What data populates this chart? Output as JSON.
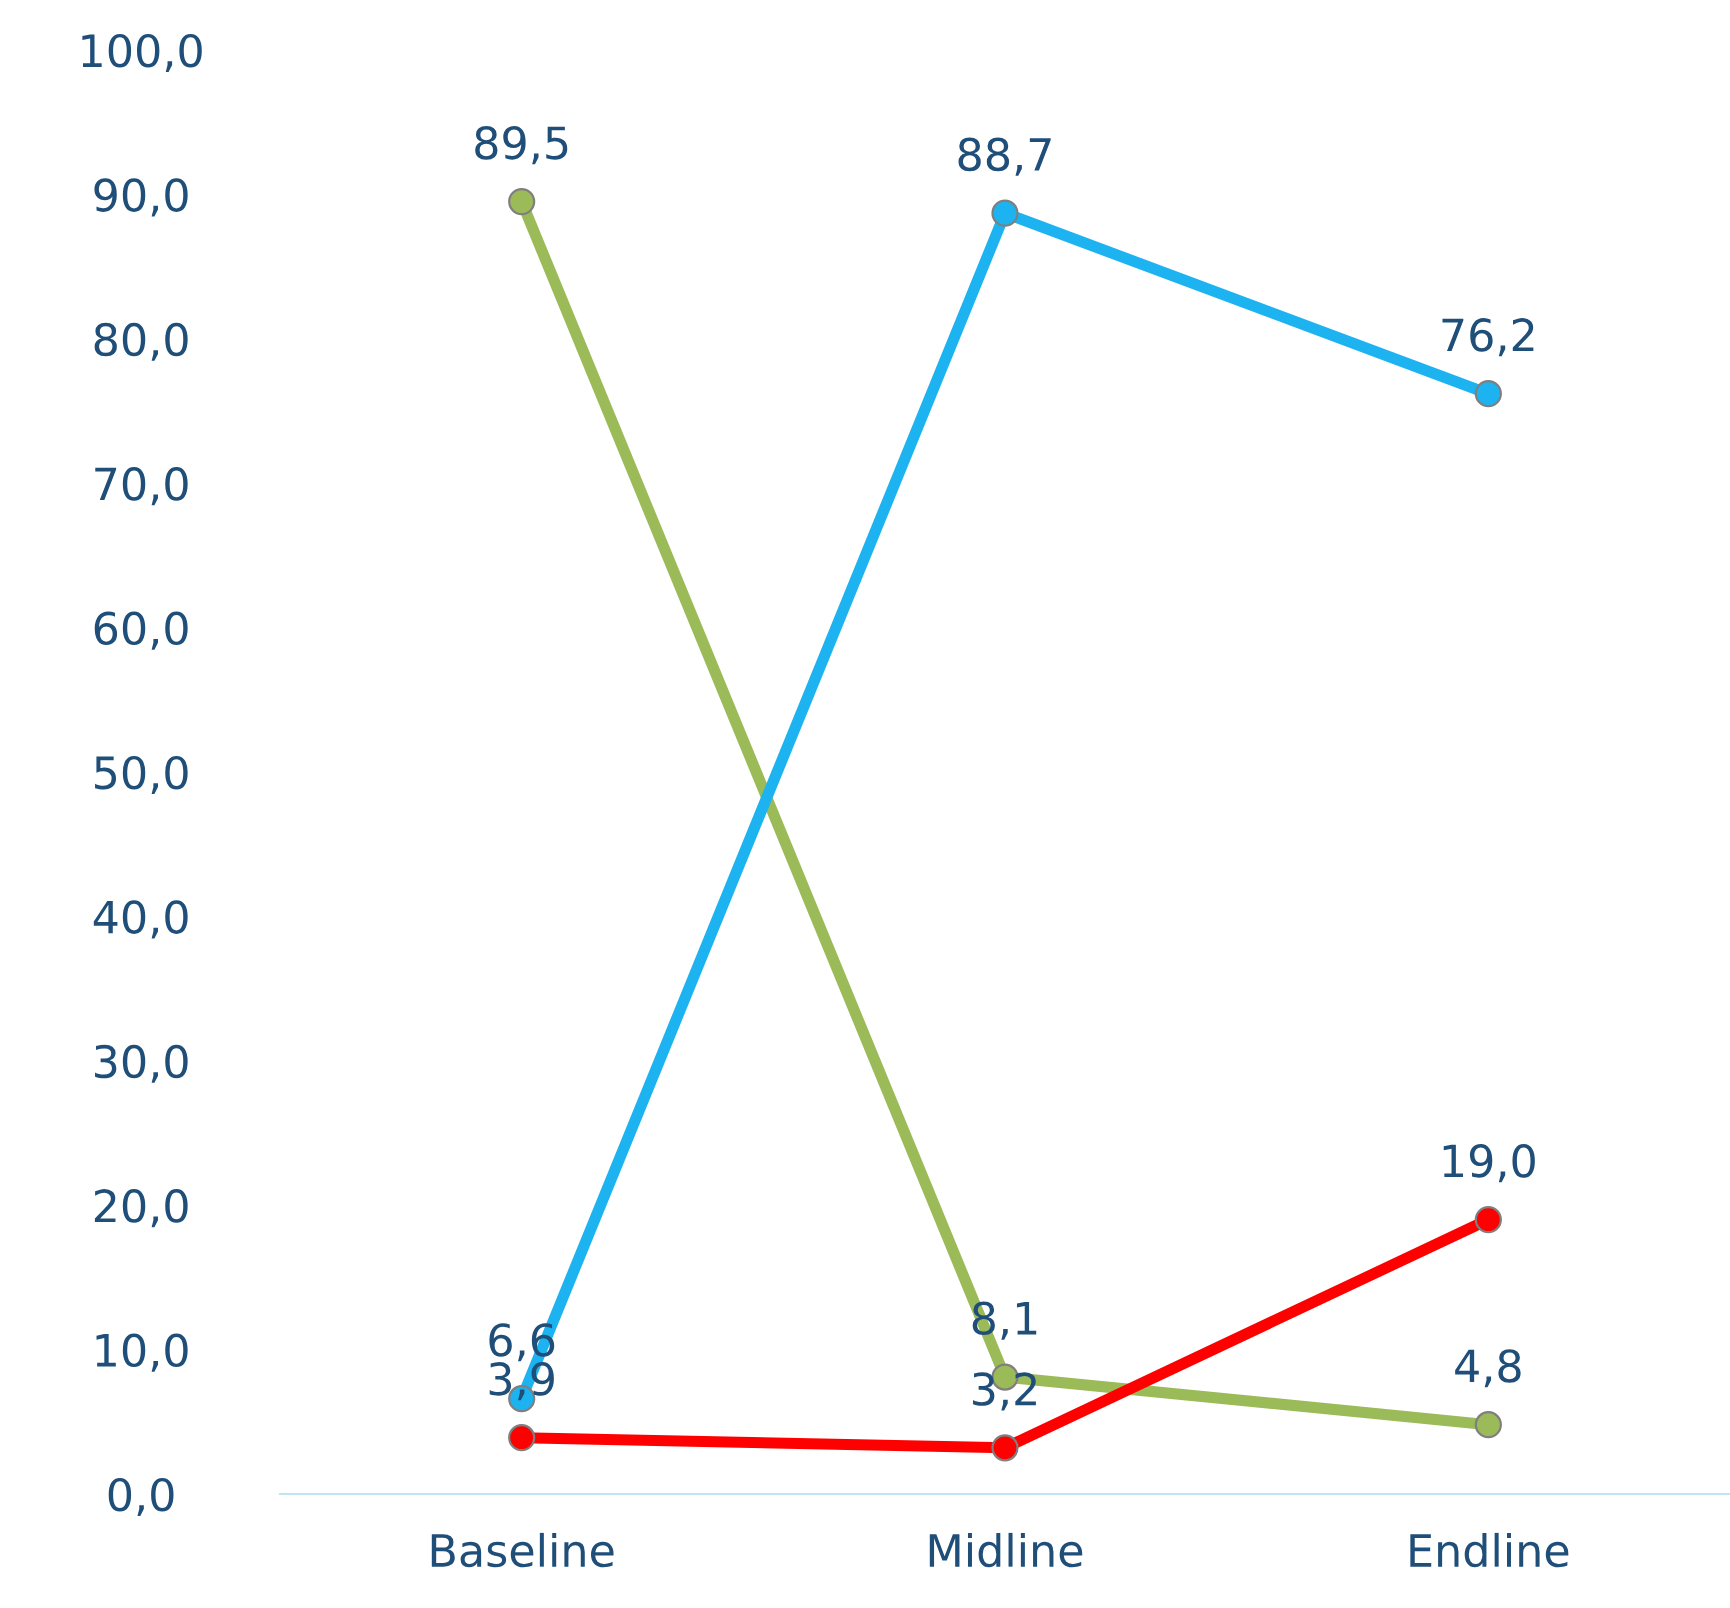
{
  "chart_data": {
    "type": "line",
    "categories": [
      "Baseline",
      "Midline",
      "Endline"
    ],
    "series": [
      {
        "color": "#9bbb59",
        "values": [
          89.5,
          8.1,
          4.8
        ],
        "value_labels": [
          "89,5",
          "8,1",
          "4,8"
        ]
      },
      {
        "color": "#1cb3f0",
        "values": [
          6.6,
          88.7,
          76.2
        ],
        "value_labels": [
          "6,6",
          "88,7",
          "76,2"
        ]
      },
      {
        "color": "#ff0000",
        "values": [
          3.9,
          3.2,
          19.0
        ],
        "value_labels": [
          "3,9",
          "3,2",
          "19,0"
        ]
      }
    ],
    "ylim": [
      0,
      100
    ],
    "yticks": [
      {
        "value": 0,
        "label": "0,0"
      },
      {
        "value": 10,
        "label": "10,0"
      },
      {
        "value": 20,
        "label": "20,0"
      },
      {
        "value": 30,
        "label": "30,0"
      },
      {
        "value": 40,
        "label": "40,0"
      },
      {
        "value": 50,
        "label": "50,0"
      },
      {
        "value": 60,
        "label": "60,0"
      },
      {
        "value": 70,
        "label": "70,0"
      },
      {
        "value": 80,
        "label": "80,0"
      },
      {
        "value": 90,
        "label": "90,0"
      },
      {
        "value": 100,
        "label": "100,0"
      }
    ],
    "grid": false,
    "legend": false,
    "marker": "circle",
    "line_style": "solid"
  }
}
